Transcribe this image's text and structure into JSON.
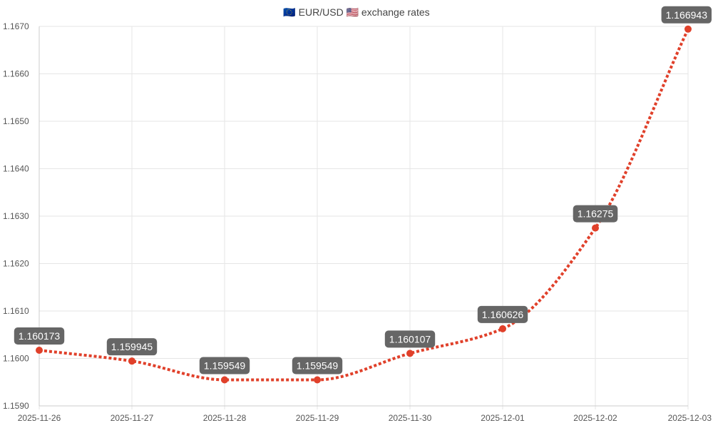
{
  "chart_data": {
    "type": "line",
    "title": "🇪🇺 EUR/USD 🇺🇸 exchange rates",
    "xlabel": "",
    "ylabel": "",
    "categories": [
      "2025-11-26",
      "2025-11-27",
      "2025-11-28",
      "2025-11-29",
      "2025-11-30",
      "2025-12-01",
      "2025-12-02",
      "2025-12-03"
    ],
    "series": [
      {
        "values": [
          1.160173,
          1.159945,
          1.159549,
          1.159549,
          1.160107,
          1.160626,
          1.16275,
          1.166943
        ],
        "data_labels": [
          "1.160173",
          "1.159945",
          "1.159549",
          "1.159549",
          "1.160107",
          "1.160626",
          "1.16275",
          "1.166943"
        ],
        "color": "#e0402a",
        "line_style": "dotted"
      }
    ],
    "ylim": [
      1.159,
      1.167
    ],
    "yticks": [
      1.159,
      1.16,
      1.161,
      1.162,
      1.163,
      1.164,
      1.165,
      1.166,
      1.167
    ],
    "ytick_labels": [
      "1.1590",
      "1.1600",
      "1.1610",
      "1.1620",
      "1.1630",
      "1.1640",
      "1.1650",
      "1.1660",
      "1.1670"
    ],
    "grid": true,
    "legend": "none",
    "label_box_color": "#666666",
    "grid_color": "#e6e6e6"
  }
}
